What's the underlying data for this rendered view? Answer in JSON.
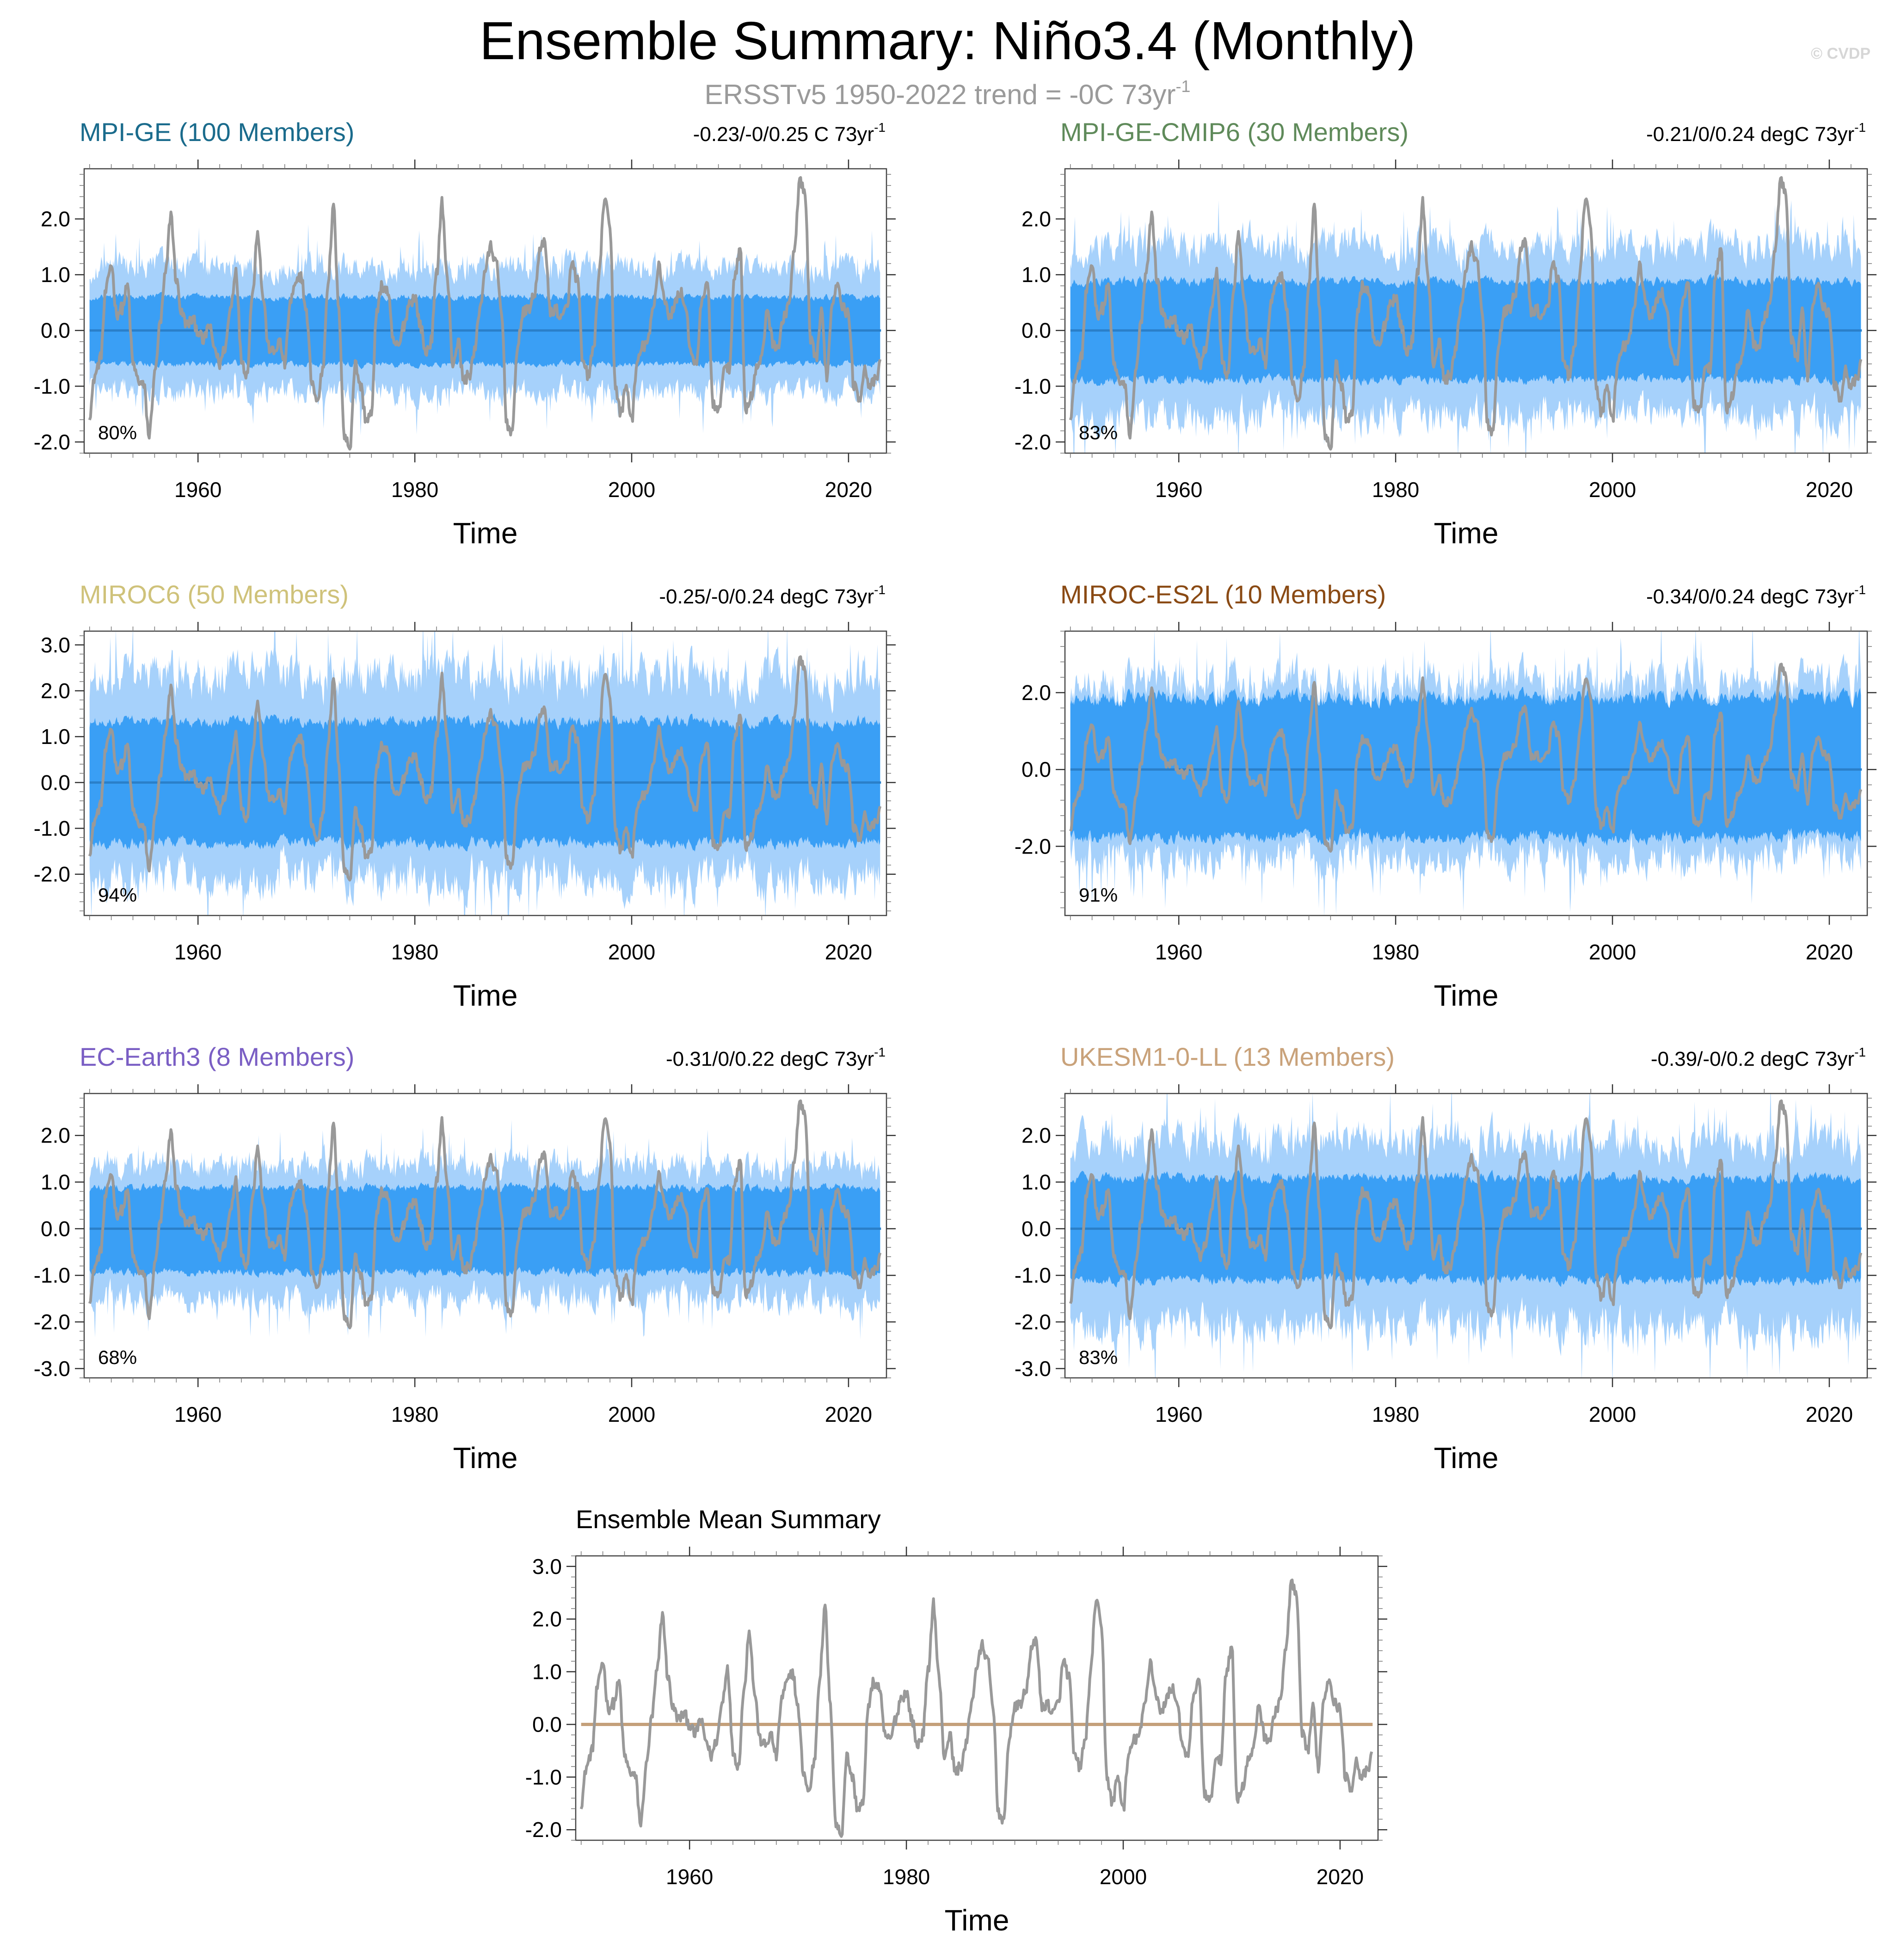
{
  "figure": {
    "title": "Ensemble Summary: Niño3.4 (Monthly)",
    "subtitle_prefix": "ERSSTv5 1950-2022 trend = -0C 73yr",
    "subtitle_sup": "-1",
    "copyright": "© CVDP"
  },
  "colors": {
    "outer_band": "#a6d1fb",
    "inner_band": "#3a9ff5",
    "ensemble_median": "#2a7fc9",
    "observations": "#999999",
    "mean_summary_zero": "#c4a07a"
  },
  "chart_data": [
    {
      "type": "area",
      "title": "MPI-GE (100 Members)",
      "title_color": "#1a6b8c",
      "trend_label": "-0.23/-0/0.25 C 73yr",
      "trend_sup": "-1",
      "percent_label": "80%",
      "xlabel": "Time",
      "xlim": [
        1949.5,
        2023.5
      ],
      "xticks": [
        1960,
        1980,
        2000,
        2020
      ],
      "ylim": [
        -2.2,
        2.9
      ],
      "yticks": [
        -2.0,
        -1.0,
        0.0,
        1.0,
        2.0
      ],
      "ytick_labels": [
        "-2.0",
        "-1.0",
        "0.0",
        "1.0",
        "2.0"
      ],
      "series": [
        {
          "name": "outer spread",
          "lower": -1.1,
          "upper": 1.15
        },
        {
          "name": "inner spread",
          "lower": -0.55,
          "upper": 0.55
        },
        {
          "name": "ensemble median",
          "value": 0.0
        },
        {
          "name": "ERSSTv5 observations"
        }
      ]
    },
    {
      "type": "area",
      "title": "MPI-GE-CMIP6 (30 Members)",
      "title_color": "#5f8a5a",
      "trend_label": "-0.21/0/0.24 degC 73yr",
      "trend_sup": "-1",
      "percent_label": "83%",
      "xlabel": "Time",
      "xlim": [
        1949.5,
        2023.5
      ],
      "xticks": [
        1960,
        1980,
        2000,
        2020
      ],
      "ylim": [
        -2.2,
        2.9
      ],
      "yticks": [
        -2.0,
        -1.0,
        0.0,
        1.0,
        2.0
      ],
      "ytick_labels": [
        "-2.0",
        "-1.0",
        "0.0",
        "1.0",
        "2.0"
      ],
      "series": [
        {
          "name": "outer spread",
          "lower": -1.5,
          "upper": 1.5
        },
        {
          "name": "inner spread",
          "lower": -0.8,
          "upper": 0.8
        },
        {
          "name": "ensemble median",
          "value": 0.0
        },
        {
          "name": "ERSSTv5 observations"
        }
      ]
    },
    {
      "type": "area",
      "title": "MIROC6 (50 Members)",
      "title_color": "#cfc27a",
      "trend_label": "-0.25/-0/0.24 degC 73yr",
      "trend_sup": "-1",
      "percent_label": "94%",
      "xlabel": "Time",
      "xlim": [
        1949.5,
        2023.5
      ],
      "xticks": [
        1960,
        1980,
        2000,
        2020
      ],
      "ylim": [
        -2.9,
        3.3
      ],
      "yticks": [
        -2.0,
        -1.0,
        0.0,
        1.0,
        2.0,
        3.0
      ],
      "ytick_labels": [
        "-2.0",
        "-1.0",
        "0.0",
        "1.0",
        "2.0",
        "3.0"
      ],
      "series": [
        {
          "name": "outer spread",
          "lower": -2.1,
          "upper": 2.3
        },
        {
          "name": "inner spread",
          "lower": -1.2,
          "upper": 1.2
        },
        {
          "name": "ensemble median",
          "value": 0.0
        },
        {
          "name": "ERSSTv5 observations"
        }
      ]
    },
    {
      "type": "area",
      "title": "MIROC-ES2L (10 Members)",
      "title_color": "#8a4a14",
      "trend_label": "-0.34/0/0.24 degC 73yr",
      "trend_sup": "-1",
      "percent_label": "91%",
      "xlabel": "Time",
      "xlim": [
        1949.5,
        2023.5
      ],
      "xticks": [
        1960,
        1980,
        2000,
        2020
      ],
      "ylim": [
        -3.8,
        3.6
      ],
      "yticks": [
        -2.0,
        0.0,
        2.0
      ],
      "ytick_labels": [
        "-2.0",
        "0.0",
        "2.0"
      ],
      "series": [
        {
          "name": "outer spread",
          "lower": -2.3,
          "upper": 2.3
        },
        {
          "name": "inner spread",
          "lower": -1.6,
          "upper": 1.7
        },
        {
          "name": "ensemble median",
          "value": 0.0
        },
        {
          "name": "ERSSTv5 observations"
        }
      ]
    },
    {
      "type": "area",
      "title": "EC-Earth3 (8 Members)",
      "title_color": "#7a5ec4",
      "trend_label": "-0.31/0/0.22 degC 73yr",
      "trend_sup": "-1",
      "percent_label": "68%",
      "xlabel": "Time",
      "xlim": [
        1949.5,
        2023.5
      ],
      "xticks": [
        1960,
        1980,
        2000,
        2020
      ],
      "ylim": [
        -3.2,
        2.9
      ],
      "yticks": [
        -3.0,
        -2.0,
        -1.0,
        0.0,
        1.0,
        2.0
      ],
      "ytick_labels": [
        "-3.0",
        "-2.0",
        "-1.0",
        "0.0",
        "1.0",
        "2.0"
      ],
      "series": [
        {
          "name": "outer spread",
          "lower": -1.5,
          "upper": 1.35
        },
        {
          "name": "inner spread",
          "lower": -0.85,
          "upper": 0.8
        },
        {
          "name": "ensemble median",
          "value": 0.0
        },
        {
          "name": "ERSSTv5 observations"
        }
      ]
    },
    {
      "type": "area",
      "title": "UKESM1-0-LL (13 Members)",
      "title_color": "#c9a27a",
      "trend_label": "-0.39/-0/0.2 degC 73yr",
      "trend_sup": "-1",
      "percent_label": "83%",
      "xlabel": "Time",
      "xlim": [
        1949.5,
        2023.5
      ],
      "xticks": [
        1960,
        1980,
        2000,
        2020
      ],
      "ylim": [
        -3.2,
        2.9
      ],
      "yticks": [
        -3.0,
        -2.0,
        -1.0,
        0.0,
        1.0,
        2.0
      ],
      "ytick_labels": [
        "-3.0",
        "-2.0",
        "-1.0",
        "0.0",
        "1.0",
        "2.0"
      ],
      "series": [
        {
          "name": "outer spread",
          "lower": -2.1,
          "upper": 1.9
        },
        {
          "name": "inner spread",
          "lower": -1.0,
          "upper": 1.0
        },
        {
          "name": "ensemble median",
          "value": 0.0
        },
        {
          "name": "ERSSTv5 observations"
        }
      ]
    },
    {
      "type": "line",
      "title": "Ensemble Mean Summary",
      "title_color": "#000000",
      "xlabel": "Time",
      "xlim": [
        1949.5,
        2023.5
      ],
      "xticks": [
        1960,
        1980,
        2000,
        2020
      ],
      "ylim": [
        -2.2,
        3.2
      ],
      "yticks": [
        -2.0,
        -1.0,
        0.0,
        1.0,
        2.0,
        3.0
      ],
      "ytick_labels": [
        "-2.0",
        "-1.0",
        "0.0",
        "1.0",
        "2.0",
        "3.0"
      ],
      "series": [
        {
          "name": "ensemble means (zero line)",
          "value": 0.0
        },
        {
          "name": "ERSSTv5 observations"
        }
      ]
    }
  ],
  "observations": {
    "name": "ERSSTv5 Niño3.4 anomaly",
    "years": [
      1950.0,
      1950.5,
      1951.0,
      1951.5,
      1952.0,
      1952.5,
      1953.0,
      1953.5,
      1954.0,
      1954.5,
      1955.0,
      1955.5,
      1956.0,
      1956.5,
      1957.0,
      1957.5,
      1958.0,
      1958.5,
      1959.0,
      1959.5,
      1960.0,
      1960.5,
      1961.0,
      1961.5,
      1962.0,
      1962.5,
      1963.0,
      1963.5,
      1964.0,
      1964.5,
      1965.0,
      1965.5,
      1966.0,
      1966.5,
      1967.0,
      1967.5,
      1968.0,
      1968.5,
      1969.0,
      1969.5,
      1970.0,
      1970.5,
      1971.0,
      1971.5,
      1972.0,
      1972.5,
      1973.0,
      1973.5,
      1974.0,
      1974.5,
      1975.0,
      1975.5,
      1976.0,
      1976.5,
      1977.0,
      1977.5,
      1978.0,
      1978.5,
      1979.0,
      1979.5,
      1980.0,
      1980.5,
      1981.0,
      1981.5,
      1982.0,
      1982.5,
      1983.0,
      1983.5,
      1984.0,
      1984.5,
      1985.0,
      1985.5,
      1986.0,
      1986.5,
      1987.0,
      1987.5,
      1988.0,
      1988.5,
      1989.0,
      1989.5,
      1990.0,
      1990.5,
      1991.0,
      1991.5,
      1992.0,
      1992.5,
      1993.0,
      1993.5,
      1994.0,
      1994.5,
      1995.0,
      1995.5,
      1996.0,
      1996.5,
      1997.0,
      1997.5,
      1998.0,
      1998.5,
      1999.0,
      1999.5,
      2000.0,
      2000.5,
      2001.0,
      2001.5,
      2002.0,
      2002.5,
      2003.0,
      2003.5,
      2004.0,
      2004.5,
      2005.0,
      2005.5,
      2006.0,
      2006.5,
      2007.0,
      2007.5,
      2008.0,
      2008.5,
      2009.0,
      2009.5,
      2010.0,
      2010.5,
      2011.0,
      2011.5,
      2012.0,
      2012.5,
      2013.0,
      2013.5,
      2014.0,
      2014.5,
      2015.0,
      2015.5,
      2016.0,
      2016.5,
      2017.0,
      2017.5,
      2018.0,
      2018.5,
      2019.0,
      2019.5,
      2020.0,
      2020.5,
      2021.0,
      2021.5,
      2022.0,
      2022.5,
      2023.0
    ],
    "values": [
      -1.5,
      -0.8,
      -0.5,
      0.7,
      1.2,
      0.3,
      0.4,
      0.8,
      -0.6,
      -0.9,
      -1.0,
      -1.9,
      -0.8,
      0.1,
      1.0,
      2.1,
      0.9,
      0.3,
      0.1,
      0.2,
      0.0,
      -0.2,
      0.1,
      -0.3,
      -0.6,
      -0.3,
      0.4,
      1.1,
      -0.5,
      -0.8,
      0.6,
      1.8,
      0.6,
      -0.3,
      -0.4,
      -0.2,
      -0.6,
      0.5,
      0.8,
      1.0,
      0.3,
      -0.9,
      -1.3,
      -0.7,
      0.9,
      2.2,
      0.3,
      -1.9,
      -2.1,
      -0.6,
      -1.0,
      -1.6,
      -1.5,
      0.4,
      0.8,
      0.7,
      -0.2,
      -0.3,
      0.1,
      0.5,
      0.6,
      0.1,
      -0.4,
      -0.2,
      1.0,
      2.3,
      0.9,
      -0.6,
      -0.2,
      -0.9,
      -0.8,
      -0.4,
      0.4,
      1.1,
      1.5,
      1.2,
      0.3,
      -1.7,
      -1.8,
      -0.2,
      0.3,
      0.4,
      0.6,
      1.4,
      1.6,
      0.3,
      0.4,
      0.2,
      0.4,
      1.2,
      0.9,
      -0.6,
      -0.8,
      -0.3,
      1.0,
      2.4,
      1.8,
      -1.0,
      -1.5,
      -1.0,
      -1.6,
      -0.6,
      -0.3,
      -0.2,
      0.4,
      1.2,
      0.6,
      0.2,
      0.5,
      0.7,
      0.4,
      -0.5,
      -0.6,
      0.6,
      0.8,
      -1.3,
      -1.5,
      -0.7,
      -0.7,
      1.0,
      1.5,
      -1.4,
      -1.2,
      -0.7,
      -0.5,
      0.4,
      -0.2,
      -0.3,
      0.2,
      0.5,
      1.4,
      2.7,
      2.4,
      -0.2,
      -0.5,
      0.3,
      -0.8,
      0.5,
      0.9,
      0.4,
      0.3,
      -1.0,
      -1.2,
      -0.7,
      -1.0,
      -0.9,
      -0.6
    ]
  },
  "axis": {
    "xtick_labels": [
      "1960",
      "1980",
      "2000",
      "2020"
    ],
    "xlabel": "Time"
  }
}
